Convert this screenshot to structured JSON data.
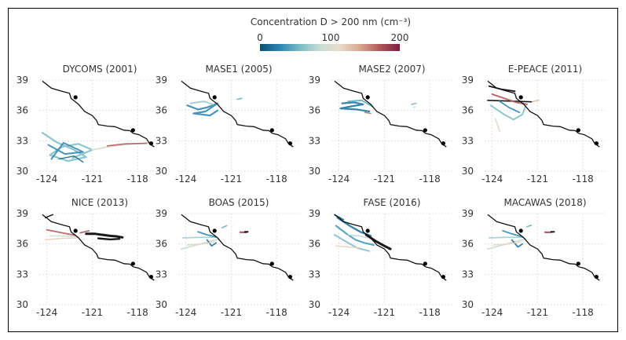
{
  "colorbar": {
    "label": "Concentration D > 200 nm (cm⁻³)",
    "ticks": [
      "0",
      "100",
      "200"
    ],
    "colors": [
      "#0b4f78",
      "#2f86b4",
      "#7bbcc4",
      "#c7ddd4",
      "#e8dccb",
      "#d7a88e",
      "#b0585a",
      "#7a1f3f"
    ]
  },
  "chart_data": [
    {
      "type": "scatter",
      "title": "DYCOMS (2001)",
      "xlim": [
        -124.5,
        -116.5
      ],
      "ylim": [
        30,
        39
      ],
      "xticks": [
        "-124",
        "-121",
        "-118"
      ],
      "yticks": [
        "39",
        "36",
        "33",
        "30"
      ],
      "grid": true
    },
    {
      "type": "scatter",
      "title": "MASE1 (2005)",
      "xlim": [
        -124.5,
        -116.5
      ],
      "ylim": [
        30,
        39
      ],
      "xticks": [
        "-124",
        "-121",
        "-118"
      ],
      "yticks": [
        "39",
        "36",
        "33",
        "30"
      ],
      "grid": true
    },
    {
      "type": "scatter",
      "title": "MASE2 (2007)",
      "xlim": [
        -124.5,
        -116.5
      ],
      "ylim": [
        30,
        39
      ],
      "xticks": [
        "-124",
        "-121",
        "-118"
      ],
      "yticks": [
        "39",
        "36",
        "33",
        "30"
      ],
      "grid": true
    },
    {
      "type": "scatter",
      "title": "E-PEACE (2011)",
      "xlim": [
        -124.5,
        -116.5
      ],
      "ylim": [
        30,
        39
      ],
      "xticks": [
        "-124",
        "-121",
        "-118"
      ],
      "yticks": [
        "39",
        "36",
        "33",
        "30"
      ],
      "grid": true
    },
    {
      "type": "scatter",
      "title": "NICE (2013)",
      "xlim": [
        -124.5,
        -116.5
      ],
      "ylim": [
        30,
        39
      ],
      "xticks": [
        "-124",
        "-121",
        "-118"
      ],
      "yticks": [
        "39",
        "36",
        "33",
        "30"
      ],
      "grid": true
    },
    {
      "type": "scatter",
      "title": "BOAS (2015)",
      "xlim": [
        -124.5,
        -116.5
      ],
      "ylim": [
        30,
        39
      ],
      "xticks": [
        "-124",
        "-121",
        "-118"
      ],
      "yticks": [
        "39",
        "36",
        "33",
        "30"
      ],
      "grid": true
    },
    {
      "type": "scatter",
      "title": "FASE (2016)",
      "xlim": [
        -124.5,
        -116.5
      ],
      "ylim": [
        30,
        39
      ],
      "xticks": [
        "-124",
        "-121",
        "-118"
      ],
      "yticks": [
        "39",
        "36",
        "33",
        "30"
      ],
      "grid": true
    },
    {
      "type": "scatter",
      "title": "MACAWAS (2018)",
      "xlim": [
        -124.5,
        -116.5
      ],
      "ylim": [
        30,
        39
      ],
      "xticks": [
        "-124",
        "-121",
        "-118"
      ],
      "yticks": [
        "39",
        "36",
        "33",
        "30"
      ],
      "grid": true
    }
  ],
  "coastline": [
    [
      -124.3,
      38.9
    ],
    [
      -123.7,
      38.2
    ],
    [
      -123.0,
      37.9
    ],
    [
      -122.5,
      37.7
    ],
    [
      -122.4,
      37.2
    ],
    [
      -121.9,
      36.6
    ],
    [
      -121.5,
      35.9
    ],
    [
      -121.0,
      35.5
    ],
    [
      -120.7,
      35.0
    ],
    [
      -120.6,
      34.6
    ],
    [
      -120.0,
      34.45
    ],
    [
      -119.5,
      34.4
    ],
    [
      -118.9,
      34.05
    ],
    [
      -118.5,
      34.0
    ],
    [
      -118.3,
      33.75
    ],
    [
      -117.9,
      33.6
    ],
    [
      -117.4,
      33.2
    ],
    [
      -117.2,
      32.7
    ],
    [
      -116.9,
      32.4
    ]
  ],
  "sites": [
    [
      -122.1,
      37.3
    ],
    [
      -118.3,
      34.05
    ],
    [
      -117.1,
      32.75
    ]
  ],
  "flights": [
    [
      {
        "c": 0.3,
        "w": 2.2,
        "p": [
          [
            -124.3,
            33.8
          ],
          [
            -123.4,
            32.9
          ],
          [
            -122.2,
            32.1
          ],
          [
            -121.4,
            31.4
          ],
          [
            -122.6,
            31.0
          ],
          [
            -123.8,
            31.6
          ],
          [
            -123.0,
            32.4
          ],
          [
            -121.9,
            32.7
          ],
          [
            -121.0,
            32.1
          ],
          [
            -122.3,
            31.3
          ]
        ]
      },
      {
        "c": 0.15,
        "w": 2.0,
        "p": [
          [
            -123.9,
            32.6
          ],
          [
            -122.8,
            31.7
          ],
          [
            -121.6,
            31.9
          ],
          [
            -122.9,
            32.8
          ],
          [
            -123.7,
            31.2
          ]
        ]
      },
      {
        "c": 0.5,
        "w": 2.0,
        "p": [
          [
            -121.0,
            32.1
          ],
          [
            -119.8,
            32.45
          ],
          [
            -118.6,
            32.65
          ],
          [
            -117.3,
            32.8
          ]
        ]
      },
      {
        "c": 0.85,
        "w": 1.6,
        "p": [
          [
            -120.0,
            32.5
          ],
          [
            -118.8,
            32.7
          ],
          [
            -117.4,
            32.75
          ]
        ]
      },
      {
        "c": 0.05,
        "w": 1.4,
        "p": [
          [
            -123.2,
            31.2
          ],
          [
            -122.2,
            31.5
          ],
          [
            -121.6,
            30.9
          ]
        ]
      }
    ],
    [
      {
        "c": 0.15,
        "w": 2.2,
        "p": [
          [
            -123.9,
            36.5
          ],
          [
            -123.2,
            36.1
          ],
          [
            -122.6,
            36.3
          ],
          [
            -121.9,
            36.7
          ],
          [
            -122.7,
            35.9
          ],
          [
            -123.5,
            35.7
          ],
          [
            -122.4,
            35.5
          ],
          [
            -121.9,
            36.0
          ]
        ]
      },
      {
        "c": 0.35,
        "w": 2.0,
        "p": [
          [
            -123.7,
            36.7
          ],
          [
            -122.8,
            36.9
          ],
          [
            -122.2,
            36.6
          ]
        ]
      },
      {
        "c": 0.25,
        "w": 1.6,
        "p": [
          [
            -120.6,
            37.1
          ],
          [
            -120.3,
            37.2
          ]
        ]
      }
    ],
    [
      {
        "c": 0.1,
        "w": 2.2,
        "p": [
          [
            -123.8,
            36.7
          ],
          [
            -123.0,
            36.8
          ],
          [
            -122.4,
            36.6
          ],
          [
            -123.2,
            36.4
          ],
          [
            -123.9,
            36.2
          ],
          [
            -122.8,
            36.1
          ],
          [
            -122.0,
            35.9
          ]
        ]
      },
      {
        "c": 0.25,
        "w": 2.0,
        "p": [
          [
            -123.4,
            36.9
          ],
          [
            -122.5,
            37.0
          ],
          [
            -121.8,
            36.4
          ]
        ]
      },
      {
        "c": 0.8,
        "w": 1.6,
        "p": [
          [
            -122.3,
            35.8
          ],
          [
            -121.9,
            35.7
          ]
        ]
      },
      {
        "c": 0.3,
        "w": 1.8,
        "p": [
          [
            -119.2,
            36.6
          ],
          [
            -118.9,
            36.7
          ]
        ]
      },
      {
        "c": 0.6,
        "w": 1.4,
        "p": [
          [
            -119.1,
            36.3
          ],
          [
            -118.95,
            36.35
          ]
        ]
      }
    ],
    [
      {
        "c": -1,
        "w": 1.8,
        "p": [
          [
            -124.2,
            38.4
          ],
          [
            -123.4,
            38.1
          ],
          [
            -122.5,
            37.9
          ]
        ]
      },
      {
        "c": -1,
        "w": 1.6,
        "p": [
          [
            -124.3,
            37.0
          ],
          [
            -123.3,
            36.95
          ],
          [
            -122.3,
            36.9
          ],
          [
            -121.4,
            36.85
          ]
        ]
      },
      {
        "c": 0.85,
        "w": 2.0,
        "p": [
          [
            -124.0,
            37.6
          ],
          [
            -123.2,
            37.2
          ],
          [
            -122.4,
            36.8
          ],
          [
            -121.7,
            36.6
          ]
        ]
      },
      {
        "c": 0.3,
        "w": 2.0,
        "p": [
          [
            -124.1,
            36.5
          ],
          [
            -123.2,
            35.6
          ],
          [
            -122.6,
            35.1
          ],
          [
            -122.0,
            35.6
          ],
          [
            -121.8,
            36.4
          ]
        ]
      },
      {
        "c": 0.55,
        "w": 1.8,
        "p": [
          [
            -123.8,
            35.2
          ],
          [
            -123.6,
            34.4
          ],
          [
            -123.5,
            33.9
          ]
        ]
      },
      {
        "c": 0.15,
        "w": 1.8,
        "p": [
          [
            -123.5,
            36.9
          ],
          [
            -122.9,
            36.3
          ],
          [
            -122.2,
            35.8
          ]
        ]
      },
      {
        "c": 0.65,
        "w": 1.6,
        "p": [
          [
            -121.3,
            36.9
          ],
          [
            -120.9,
            37.0
          ]
        ]
      }
    ],
    [
      {
        "c": 0.5,
        "w": 1.8,
        "p": [
          [
            -123.8,
            36.8
          ],
          [
            -123.0,
            36.8
          ],
          [
            -122.3,
            36.75
          ],
          [
            -121.9,
            36.7
          ]
        ]
      },
      {
        "c": 0.85,
        "w": 1.8,
        "p": [
          [
            -124.0,
            37.4
          ],
          [
            -123.0,
            37.1
          ],
          [
            -122.1,
            36.85
          ]
        ]
      },
      {
        "c": 0.6,
        "w": 1.6,
        "p": [
          [
            -124.1,
            36.4
          ],
          [
            -123.0,
            36.55
          ],
          [
            -122.0,
            36.6
          ]
        ]
      },
      {
        "c": -1,
        "w": 3.0,
        "p": [
          [
            -121.4,
            37.0
          ],
          [
            -120.8,
            37.0
          ],
          [
            -120.3,
            36.9
          ],
          [
            -119.8,
            36.8
          ],
          [
            -119.4,
            36.75
          ],
          [
            -119.0,
            36.65
          ]
        ]
      },
      {
        "c": -1,
        "w": 2.4,
        "p": [
          [
            -120.6,
            36.55
          ],
          [
            -119.8,
            36.45
          ],
          [
            -119.2,
            36.5
          ]
        ]
      },
      {
        "c": 0.9,
        "w": 1.6,
        "p": [
          [
            -121.8,
            37.1
          ],
          [
            -121.2,
            37.3
          ]
        ]
      },
      {
        "c": -1,
        "w": 1.4,
        "p": [
          [
            -124.1,
            38.6
          ],
          [
            -123.6,
            38.9
          ]
        ]
      }
    ],
    [
      {
        "c": 0.45,
        "w": 1.8,
        "p": [
          [
            -124.3,
            35.5
          ],
          [
            -123.3,
            35.9
          ],
          [
            -122.3,
            36.3
          ],
          [
            -121.8,
            36.5
          ]
        ]
      },
      {
        "c": 0.35,
        "w": 1.6,
        "p": [
          [
            -124.2,
            36.6
          ],
          [
            -123.1,
            36.65
          ],
          [
            -122.0,
            36.65
          ]
        ]
      },
      {
        "c": 0.15,
        "w": 1.8,
        "p": [
          [
            -123.2,
            37.2
          ],
          [
            -122.6,
            36.9
          ],
          [
            -122.0,
            36.7
          ]
        ]
      },
      {
        "c": 0.1,
        "w": 1.8,
        "p": [
          [
            -122.6,
            36.4
          ],
          [
            -122.3,
            35.8
          ],
          [
            -122.0,
            36.1
          ]
        ]
      },
      {
        "c": 0.6,
        "w": 1.4,
        "p": [
          [
            -123.9,
            35.9
          ],
          [
            -122.9,
            36.0
          ],
          [
            -122.1,
            36.2
          ]
        ]
      },
      {
        "c": 0.25,
        "w": 1.6,
        "p": [
          [
            -121.6,
            37.6
          ],
          [
            -121.3,
            37.8
          ]
        ]
      },
      {
        "c": 0.9,
        "w": 2.2,
        "p": [
          [
            -120.4,
            37.15
          ],
          [
            -120.0,
            37.15
          ]
        ]
      },
      {
        "c": -1,
        "w": 2.0,
        "p": [
          [
            -120.1,
            37.2
          ],
          [
            -119.9,
            37.2
          ]
        ]
      }
    ],
    [
      {
        "c": 0.1,
        "w": 2.4,
        "p": [
          [
            -124.1,
            38.6
          ],
          [
            -123.3,
            37.8
          ],
          [
            -122.6,
            37.2
          ],
          [
            -121.9,
            36.8
          ]
        ]
      },
      {
        "c": 0.2,
        "w": 2.2,
        "p": [
          [
            -124.2,
            37.8
          ],
          [
            -123.5,
            37.0
          ],
          [
            -122.9,
            36.4
          ],
          [
            -122.3,
            36.1
          ],
          [
            -121.7,
            35.9
          ]
        ]
      },
      {
        "c": 0.3,
        "w": 2.0,
        "p": [
          [
            -124.3,
            36.9
          ],
          [
            -123.5,
            36.2
          ],
          [
            -122.8,
            35.6
          ],
          [
            -122.0,
            35.3
          ]
        ]
      },
      {
        "c": -1,
        "w": 3.0,
        "p": [
          [
            -122.2,
            36.9
          ],
          [
            -121.6,
            36.3
          ],
          [
            -121.0,
            35.8
          ],
          [
            -120.6,
            35.5
          ]
        ]
      },
      {
        "c": 0.6,
        "w": 1.6,
        "p": [
          [
            -124.2,
            35.8
          ],
          [
            -123.4,
            35.7
          ],
          [
            -122.6,
            35.6
          ]
        ]
      },
      {
        "c": 0.4,
        "w": 1.6,
        "p": [
          [
            -123.4,
            36.9
          ],
          [
            -122.7,
            36.8
          ],
          [
            -122.1,
            36.6
          ]
        ]
      },
      {
        "c": 0.05,
        "w": 1.6,
        "p": [
          [
            -124.3,
            38.9
          ],
          [
            -123.7,
            38.4
          ]
        ]
      }
    ],
    [
      {
        "c": 0.45,
        "w": 1.8,
        "p": [
          [
            -124.3,
            35.5
          ],
          [
            -123.3,
            35.9
          ],
          [
            -122.3,
            36.3
          ],
          [
            -121.8,
            36.5
          ]
        ]
      },
      {
        "c": 0.35,
        "w": 1.6,
        "p": [
          [
            -124.2,
            36.6
          ],
          [
            -123.1,
            36.65
          ],
          [
            -122.0,
            36.65
          ]
        ]
      },
      {
        "c": 0.15,
        "w": 1.8,
        "p": [
          [
            -123.3,
            37.3
          ],
          [
            -122.7,
            37.0
          ],
          [
            -122.0,
            36.7
          ]
        ]
      },
      {
        "c": 0.1,
        "w": 1.8,
        "p": [
          [
            -122.7,
            36.4
          ],
          [
            -122.3,
            35.7
          ],
          [
            -122.0,
            36.0
          ]
        ]
      },
      {
        "c": 0.6,
        "w": 1.4,
        "p": [
          [
            -123.9,
            35.9
          ],
          [
            -122.9,
            36.0
          ],
          [
            -122.1,
            36.2
          ]
        ]
      },
      {
        "c": 0.25,
        "w": 1.6,
        "p": [
          [
            -121.7,
            37.7
          ],
          [
            -121.4,
            37.85
          ]
        ]
      },
      {
        "c": 0.9,
        "w": 2.2,
        "p": [
          [
            -120.5,
            37.15
          ],
          [
            -120.1,
            37.15
          ]
        ]
      },
      {
        "c": -1,
        "w": 2.0,
        "p": [
          [
            -120.1,
            37.2
          ],
          [
            -119.9,
            37.2
          ]
        ]
      }
    ]
  ]
}
